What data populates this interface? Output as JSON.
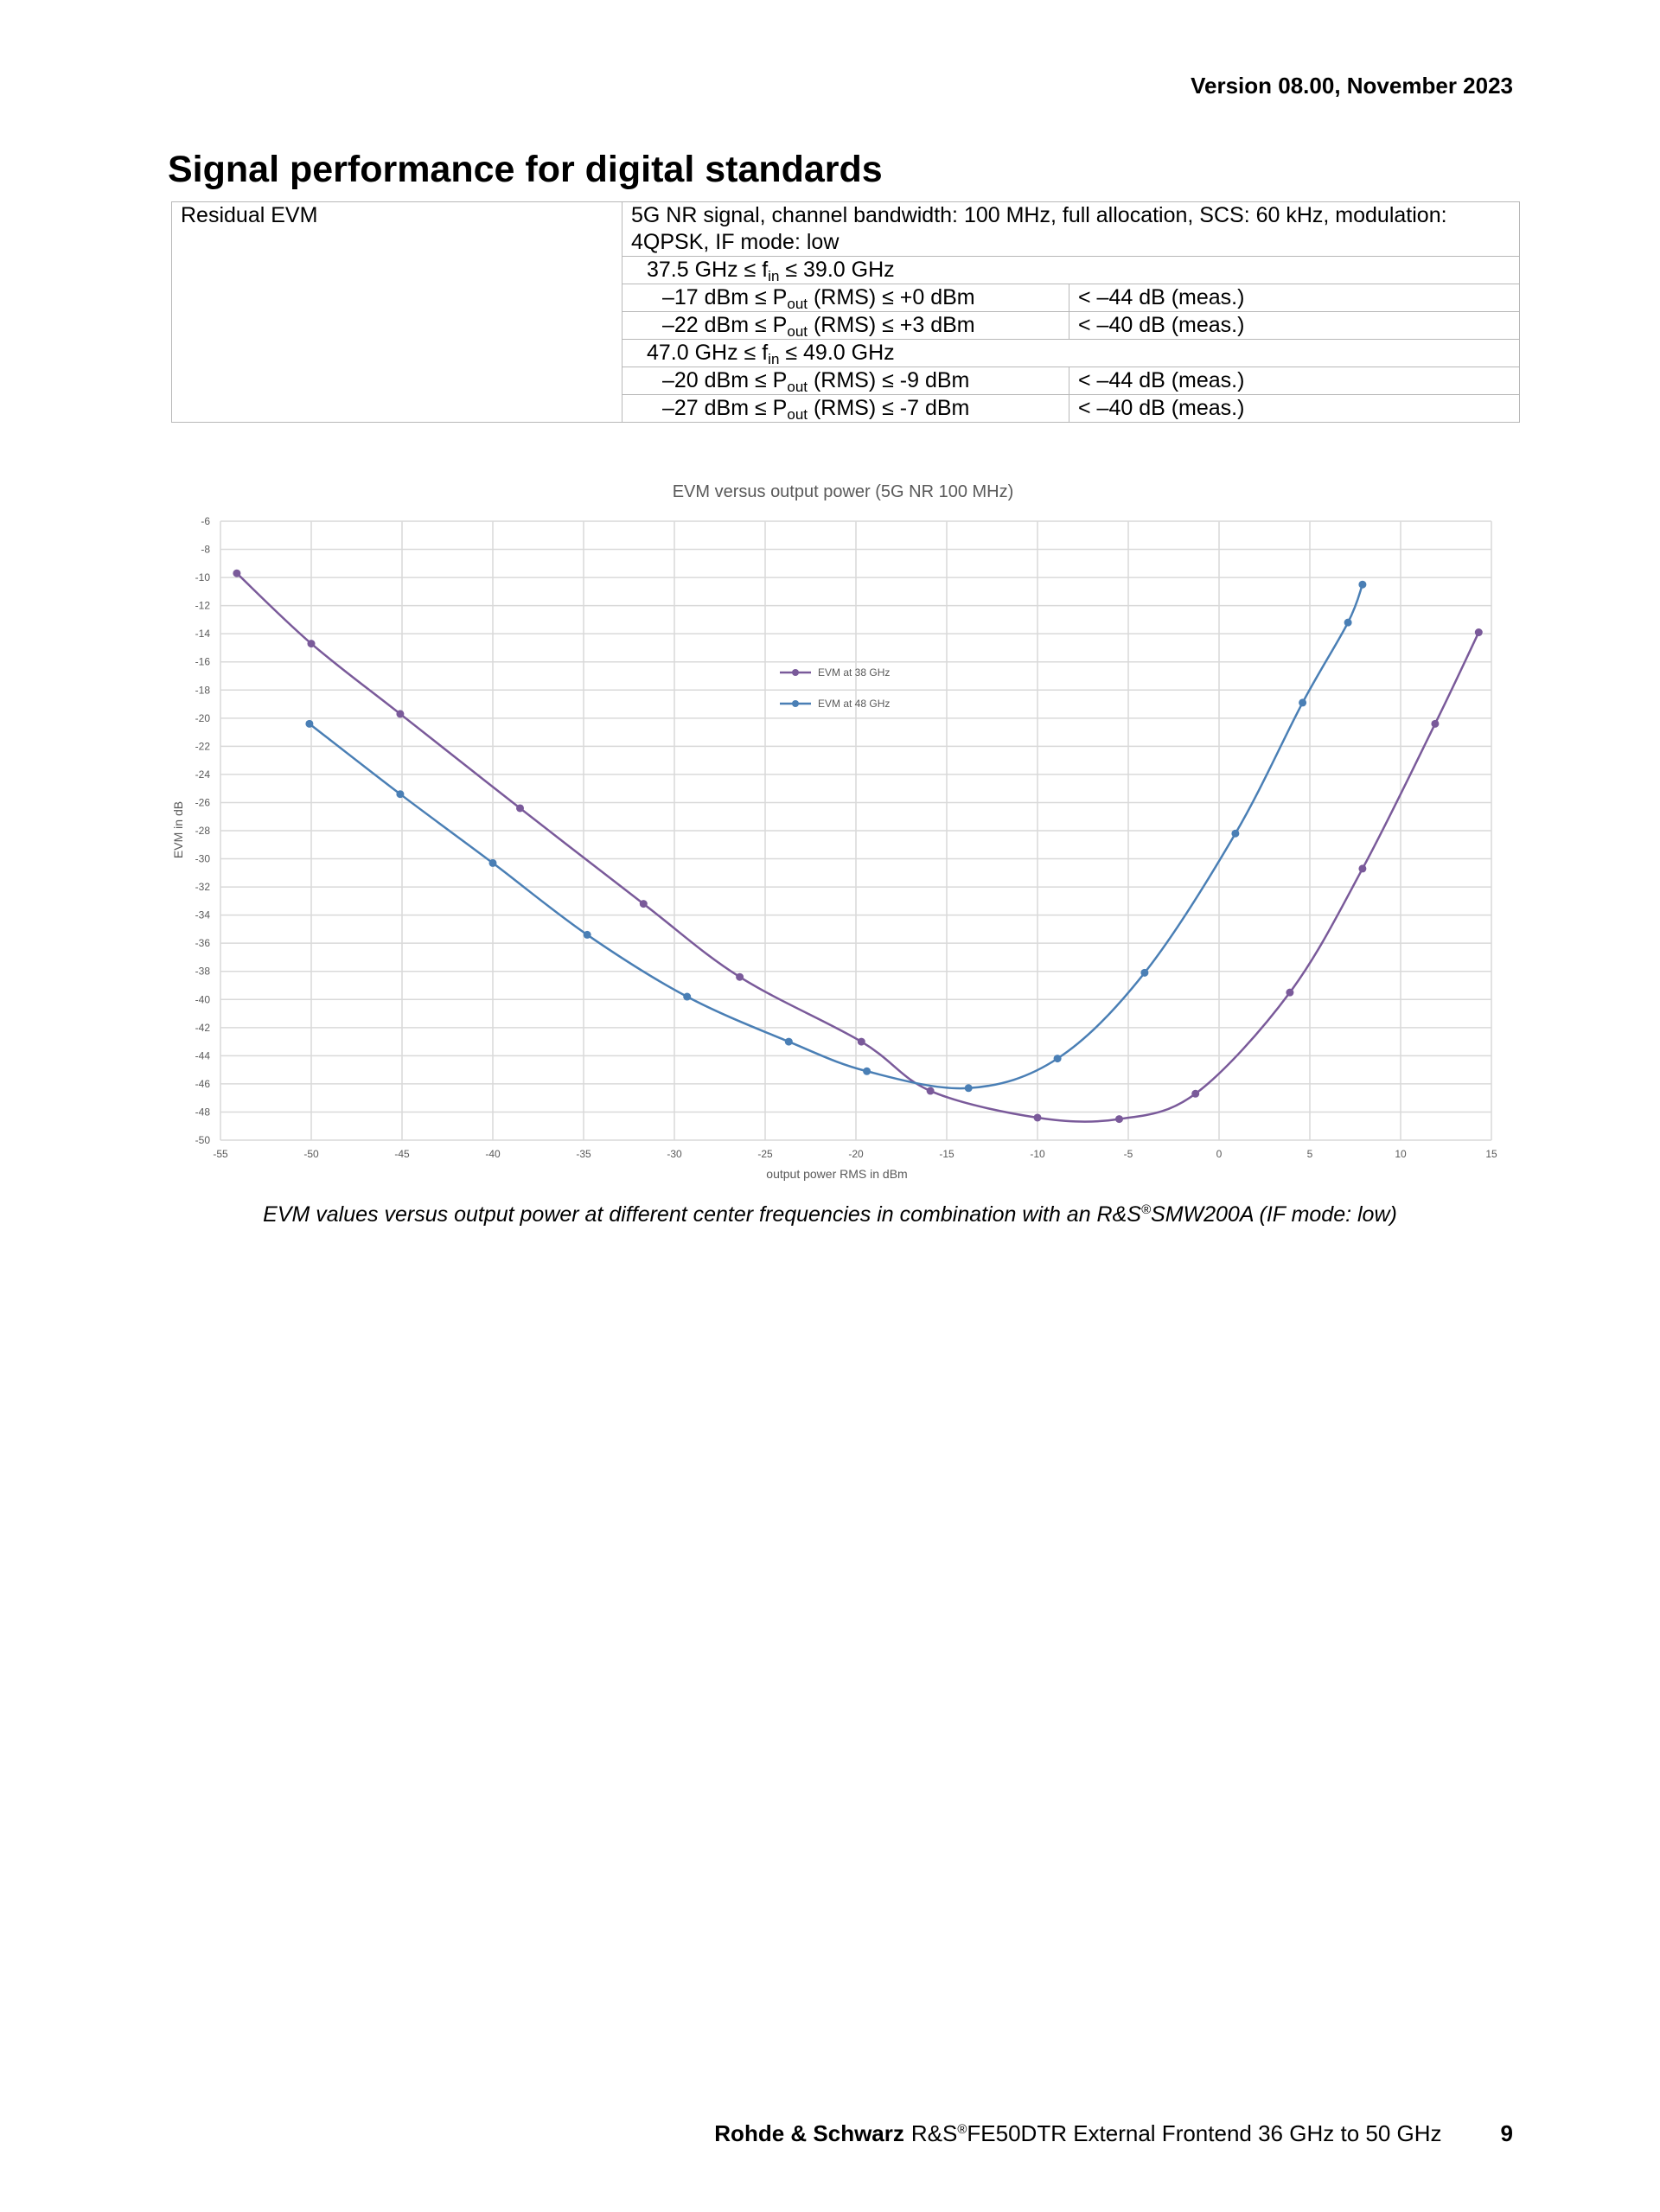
{
  "header": {
    "version": "Version 08.00, November 2023"
  },
  "section": {
    "title": "Signal performance for digital standards"
  },
  "spec_table": {
    "param": "Residual EVM",
    "condition_main": "5G NR signal, channel bandwidth: 100 MHz, full allocation, SCS: 60 kHz, modulation: 4QPSK, IF mode: low",
    "groups": [
      {
        "range_pre": "37.5 GHz ≤ f",
        "range_sub": "in",
        "range_post": " ≤ 39.0 GHz",
        "rows": [
          {
            "pre": "–17 dBm ≤ P",
            "sub": "out",
            "post": " (RMS) ≤ +0 dBm",
            "value": "< –44 dB (meas.)"
          },
          {
            "pre": "–22 dBm ≤ P",
            "sub": "out",
            "post": " (RMS) ≤ +3 dBm",
            "value": "< –40 dB (meas.)"
          }
        ]
      },
      {
        "range_pre": "47.0 GHz ≤ f",
        "range_sub": "in",
        "range_post": " ≤ 49.0 GHz",
        "rows": [
          {
            "pre": "–20 dBm ≤ P",
            "sub": "out",
            "post": " (RMS) ≤ -9 dBm",
            "value": "< –44 dB (meas.)"
          },
          {
            "pre": "–27 dBm ≤ P",
            "sub": "out",
            "post": " (RMS) ≤ -7 dBm",
            "value": "< –40 dB (meas.)"
          }
        ]
      }
    ]
  },
  "chart_data": {
    "type": "line",
    "title": "EVM versus output power (5G NR 100 MHz)",
    "xlabel": "output power RMS in dBm",
    "ylabel": "EVM in dB",
    "xlim": [
      -55,
      15
    ],
    "ylim": [
      -50,
      -6
    ],
    "xticks": [
      -55,
      -50,
      -45,
      -40,
      -35,
      -30,
      -25,
      -20,
      -15,
      -10,
      -5,
      0,
      5,
      10,
      15
    ],
    "yticks": [
      -6,
      -8,
      -10,
      -12,
      -14,
      -16,
      -18,
      -20,
      -22,
      -24,
      -26,
      -28,
      -30,
      -32,
      -34,
      -36,
      -38,
      -40,
      -42,
      -44,
      -46,
      -48,
      -50
    ],
    "grid": true,
    "legend": "inside-center",
    "series": [
      {
        "name": "EVM at 38 GHz",
        "color": "#7a5a9a",
        "points": [
          [
            -54.1,
            -9.7
          ],
          [
            -50,
            -14.7
          ],
          [
            -45.1,
            -19.7
          ],
          [
            -38.5,
            -26.4
          ],
          [
            -31.7,
            -33.2
          ],
          [
            -26.4,
            -38.4
          ],
          [
            -19.7,
            -43.0
          ],
          [
            -15.9,
            -46.5
          ],
          [
            -10,
            -48.4
          ],
          [
            -5.5,
            -48.5
          ],
          [
            -1.3,
            -46.7
          ],
          [
            3.9,
            -39.5
          ],
          [
            7.9,
            -30.7
          ],
          [
            11.9,
            -20.4
          ],
          [
            14.3,
            -13.9
          ]
        ]
      },
      {
        "name": "EVM at 48 GHz",
        "color": "#4a7fb5",
        "points": [
          [
            -50.1,
            -20.4
          ],
          [
            -45.1,
            -25.4
          ],
          [
            -40,
            -30.3
          ],
          [
            -34.8,
            -35.4
          ],
          [
            -29.3,
            -39.8
          ],
          [
            -23.7,
            -43.0
          ],
          [
            -19.4,
            -45.1
          ],
          [
            -13.8,
            -46.3
          ],
          [
            -8.9,
            -44.2
          ],
          [
            -4.1,
            -38.1
          ],
          [
            0.9,
            -28.2
          ],
          [
            4.6,
            -18.9
          ],
          [
            7.1,
            -13.2
          ],
          [
            7.9,
            -10.5
          ]
        ]
      }
    ]
  },
  "caption": {
    "pre": "EVM values versus output power at different center frequencies in combination with an R&S",
    "sup": "®",
    "post": "SMW200A (IF mode: low)"
  },
  "footer": {
    "company": "Rohde & Schwarz",
    "product_pre": "R&S",
    "product_sup": "®",
    "product_post": "FE50DTR External Frontend 36 GHz to 50 GHz",
    "page": "9"
  }
}
